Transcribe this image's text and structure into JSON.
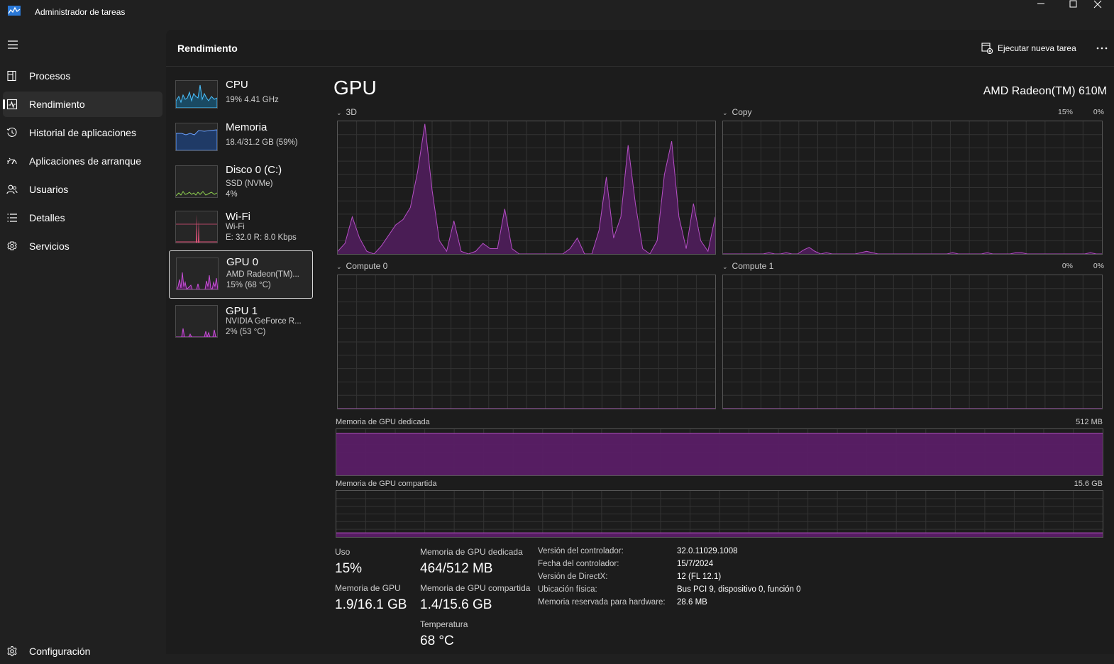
{
  "window": {
    "title": "Administrador de tareas"
  },
  "nav": {
    "items": [
      {
        "label": "Procesos",
        "icon": "processes-icon"
      },
      {
        "label": "Rendimiento",
        "icon": "performance-icon",
        "active": true
      },
      {
        "label": "Historial de aplicaciones",
        "icon": "history-icon"
      },
      {
        "label": "Aplicaciones de arranque",
        "icon": "startup-icon"
      },
      {
        "label": "Usuarios",
        "icon": "users-icon"
      },
      {
        "label": "Detalles",
        "icon": "details-icon"
      },
      {
        "label": "Servicios",
        "icon": "services-icon"
      }
    ],
    "settings_label": "Configuración"
  },
  "header": {
    "title": "Rendimiento",
    "run_task_label": "Ejecutar nueva tarea"
  },
  "perf_list": [
    {
      "title": "CPU",
      "lines": [
        "19%  4.41 GHz"
      ],
      "color": "#4cc2ff"
    },
    {
      "title": "Memoria",
      "lines": [
        "18.4/31.2 GB (59%)"
      ],
      "color": "#6aa0ff"
    },
    {
      "title": "Disco 0 (C:)",
      "lines": [
        "SSD (NVMe)",
        "4%"
      ],
      "color": "#8fd14f"
    },
    {
      "title": "Wi-Fi",
      "lines": [
        "Wi-Fi",
        "E: 32.0  R: 8.0 Kbps"
      ],
      "color": "#e0537a"
    },
    {
      "title": "GPU 0",
      "lines": [
        "AMD Radeon(TM)...",
        "15%  (68 °C)"
      ],
      "color": "#c64fd6",
      "selected": true
    },
    {
      "title": "GPU 1",
      "lines": [
        "NVIDIA GeForce R...",
        "2%  (53 °C)"
      ],
      "color": "#c64fd6"
    }
  ],
  "detail": {
    "title": "GPU",
    "device": "AMD Radeon(TM) 610M",
    "accent": "#b44fc4",
    "engines": [
      {
        "name": "3D",
        "pct": "15%",
        "values": [
          2,
          8,
          28,
          12,
          2,
          0,
          6,
          14,
          22,
          26,
          35,
          62,
          98,
          48,
          10,
          2,
          25,
          2,
          0,
          2,
          8,
          4,
          4,
          34,
          4,
          0,
          0,
          0,
          0,
          0,
          0,
          0,
          4,
          12,
          0,
          0,
          18,
          58,
          12,
          28,
          82,
          38,
          4,
          0,
          10,
          60,
          85,
          28,
          4,
          38,
          10,
          2,
          28
        ]
      },
      {
        "name": "Copy",
        "pct": "0%",
        "values": [
          0,
          0,
          0,
          0,
          0,
          0,
          0,
          0,
          1,
          0,
          0,
          1,
          0,
          0,
          3,
          5,
          2,
          0,
          1,
          0,
          0,
          0,
          0,
          0,
          1,
          2,
          1,
          0,
          0,
          0,
          0,
          0,
          0,
          0,
          0,
          0,
          0,
          0,
          0,
          0,
          1,
          0,
          0,
          0,
          0,
          0,
          1,
          0,
          0,
          0,
          0,
          1,
          1,
          0,
          0,
          0,
          0,
          0,
          0,
          0,
          0,
          0,
          0,
          0,
          1,
          0,
          0
        ]
      },
      {
        "name": "Compute 0",
        "pct": "0%",
        "values": [
          0,
          0,
          0,
          0,
          0,
          0,
          0,
          0,
          0,
          0,
          0,
          0
        ]
      },
      {
        "name": "Compute 1",
        "pct": "0%",
        "values": [
          0,
          0,
          0,
          0,
          0,
          0,
          0,
          0,
          0,
          0,
          0,
          0
        ]
      }
    ],
    "dedicated": {
      "label": "Memoria de GPU dedicada",
      "max": "512 MB",
      "fill_pct": 91
    },
    "shared": {
      "label": "Memoria de GPU compartida",
      "max": "15.6 GB",
      "fill_pct": 9
    },
    "stats": {
      "uso_label": "Uso",
      "uso_value": "15%",
      "memgpu_label": "Memoria de GPU",
      "memgpu_value": "1.9/16.1 GB",
      "dedicada_label": "Memoria de GPU dedicada",
      "dedicada_value": "464/512 MB",
      "compartida_label": "Memoria de GPU compartida",
      "compartida_value": "1.4/15.6 GB",
      "temp_label": "Temperatura",
      "temp_value": "68 °C"
    },
    "info": [
      {
        "key": "Versión del controlador:",
        "value": "32.0.11029.1008"
      },
      {
        "key": "Fecha del controlador:",
        "value": "15/7/2024"
      },
      {
        "key": "Versión de DirectX:",
        "value": "12 (FL 12.1)"
      },
      {
        "key": "Ubicación física:",
        "value": "Bus PCI 9, dispositivo 0, función 0"
      },
      {
        "key": "Memoria reservada para hardware:",
        "value": "28.6 MB"
      }
    ]
  }
}
